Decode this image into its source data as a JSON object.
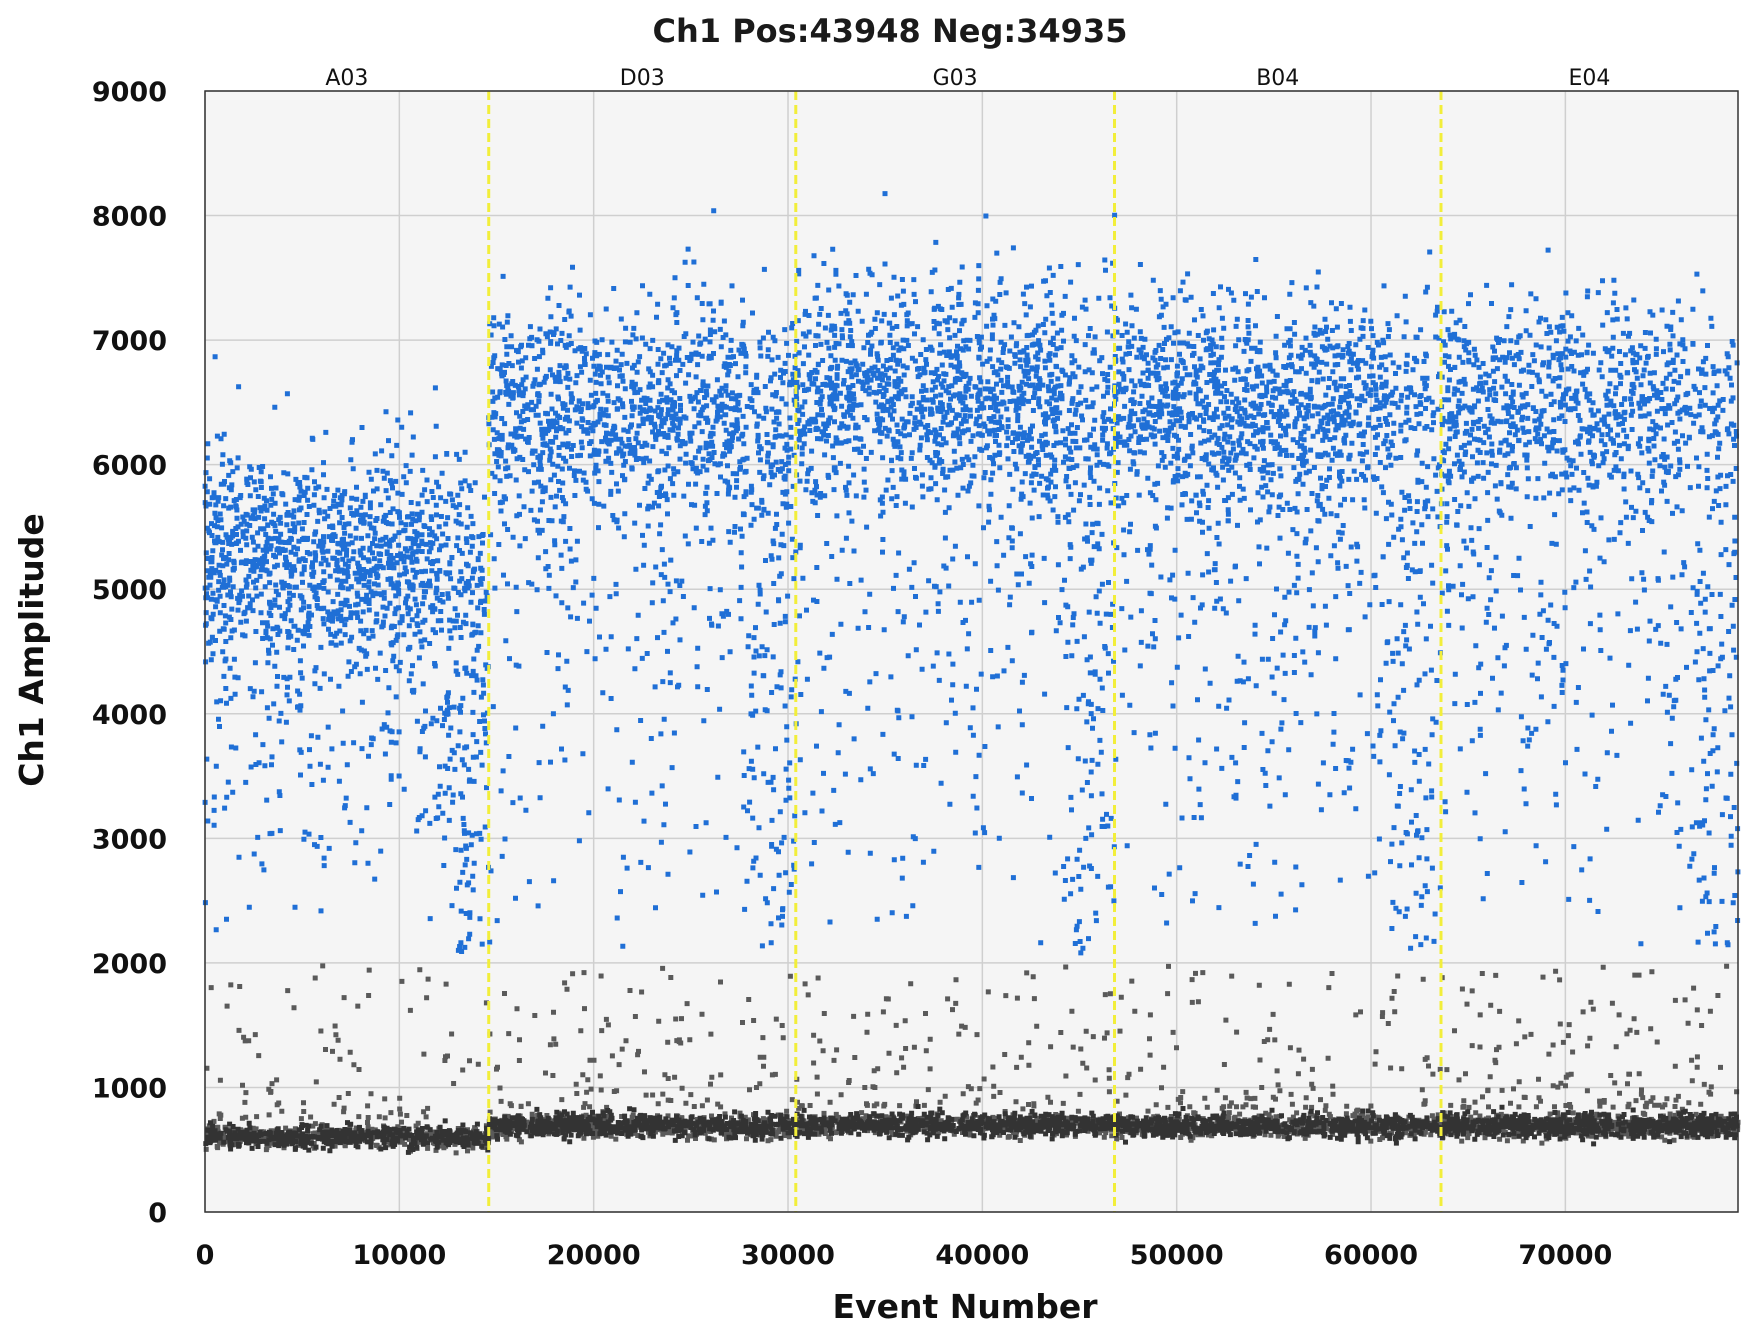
{
  "chart_data": {
    "type": "scatter",
    "title": "Ch1 Pos:43948 Neg:34935",
    "xlabel": "Event Number",
    "ylabel": "Ch1 Amplitude",
    "xlim": [
      0,
      78883
    ],
    "ylim": [
      0,
      9000
    ],
    "xticks": [
      0,
      10000,
      20000,
      30000,
      40000,
      50000,
      60000,
      70000
    ],
    "yticks": [
      0,
      1000,
      2000,
      3000,
      4000,
      5000,
      6000,
      7000,
      8000,
      9000
    ],
    "grid": true,
    "positive_count": 43948,
    "negative_count": 34935,
    "threshold": 2000,
    "well_boundaries": [
      14600,
      30400,
      46800,
      63600
    ],
    "wells": [
      {
        "name": "A03",
        "start": 0,
        "end": 14600,
        "pos_center": 5300,
        "neg_center": 600,
        "pos_fraction": 0.62
      },
      {
        "name": "D03",
        "start": 14600,
        "end": 30400,
        "pos_center": 6450,
        "neg_center": 690,
        "pos_fraction": 0.56
      },
      {
        "name": "G03",
        "start": 30400,
        "end": 46800,
        "pos_center": 6600,
        "neg_center": 700,
        "pos_fraction": 0.58
      },
      {
        "name": "B04",
        "start": 46800,
        "end": 63600,
        "pos_center": 6500,
        "neg_center": 690,
        "pos_fraction": 0.57
      },
      {
        "name": "E04",
        "start": 63600,
        "end": 78883,
        "pos_center": 6500,
        "neg_center": 690,
        "pos_fraction": 0.48
      }
    ],
    "series": [
      {
        "name": "Positive",
        "color": "#1f6fd6",
        "count": 43948
      },
      {
        "name": "Negative",
        "color": "#5a5a5a",
        "count": 34935
      }
    ],
    "colors": {
      "plot_background": "#f5f5f5",
      "grid": "#cfcfcf",
      "positive": "#1f6fd6",
      "negative": "#5a5a5a",
      "negative_core": "#333333",
      "well_divider": "#f2ee3a"
    }
  }
}
